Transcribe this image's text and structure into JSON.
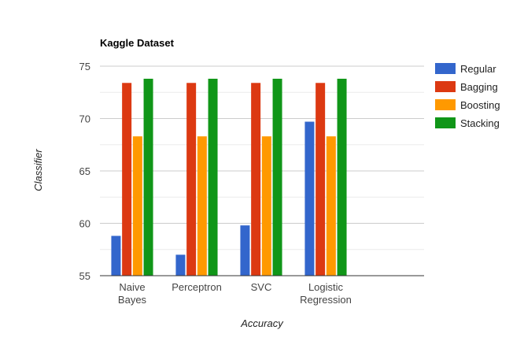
{
  "chart_data": {
    "type": "bar",
    "title": "Kaggle Dataset",
    "xlabel": "Accuracy",
    "ylabel": "Classifier",
    "categories": [
      [
        "Naive",
        "Bayes"
      ],
      [
        "Perceptron"
      ],
      [
        "SVC"
      ],
      [
        "Logistic",
        "Regression"
      ]
    ],
    "series": [
      {
        "name": "Regular",
        "color": "#3366cc",
        "values": [
          58.8,
          57.0,
          59.8,
          69.7
        ]
      },
      {
        "name": "Bagging",
        "color": "#dc3912",
        "values": [
          73.4,
          73.4,
          73.4,
          73.4
        ]
      },
      {
        "name": "Boosting",
        "color": "#ff9900",
        "values": [
          68.3,
          68.3,
          68.3,
          68.3
        ]
      },
      {
        "name": "Stacking",
        "color": "#109618",
        "values": [
          73.8,
          73.8,
          73.8,
          73.8
        ]
      }
    ],
    "ylim": [
      55,
      75
    ],
    "yticks": [
      55,
      60,
      65,
      70,
      75
    ],
    "grid": true,
    "legend_position": "right"
  }
}
